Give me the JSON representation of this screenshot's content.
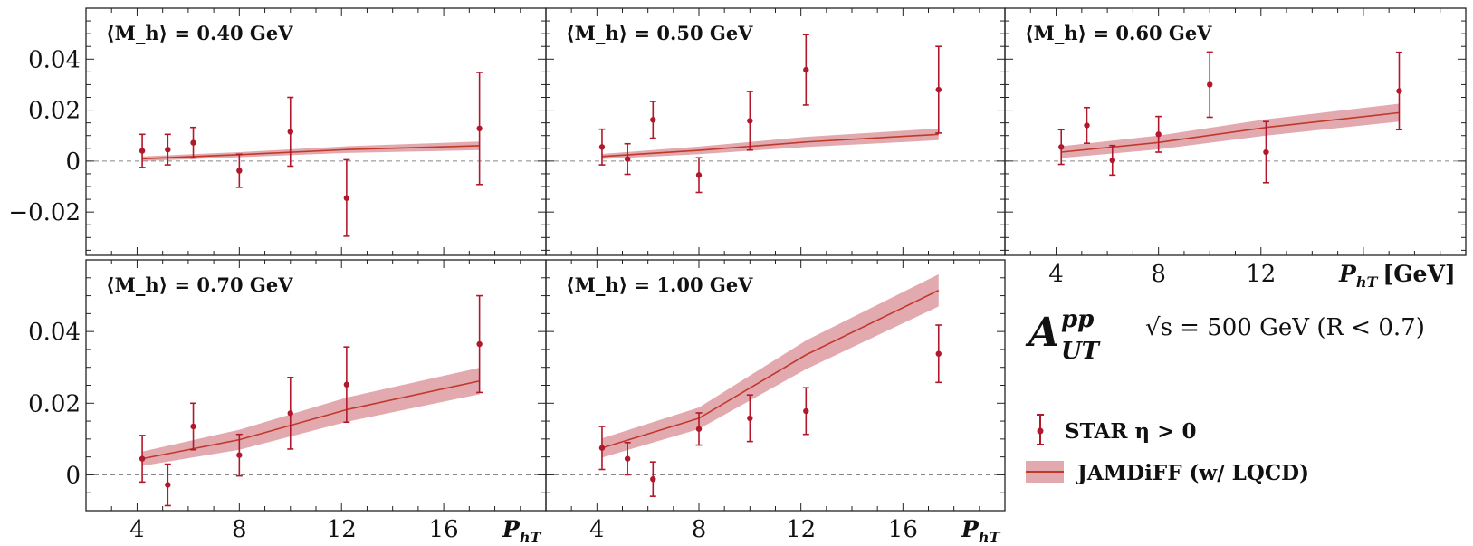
{
  "colors": {
    "data": "#b2182b",
    "band_fill": "#d6858d",
    "band_line": "#c0392b",
    "zero_line": "#888888",
    "frame": "#222222"
  },
  "axis_labels": {
    "x_symbol": "P",
    "x_subscript": "hT",
    "x_unit": "[GeV]"
  },
  "observable": {
    "symbol": "A",
    "superscript": "pp",
    "subscript": "UT",
    "energy": "√s = 500 GeV (R < 0.7)"
  },
  "legend": {
    "data_label": "STAR η > 0",
    "model_label": "JAMDiFF (w/ LQCD)"
  },
  "chart_data": [
    {
      "type": "scatter",
      "title": "⟨M_h⟩ = 0.40 GeV",
      "xlabel": "P_hT",
      "ylabel": "A_UT^pp",
      "xlim": [
        2,
        20
      ],
      "ylim": [
        -0.037,
        0.06
      ],
      "x_ticks": [
        4,
        8,
        12,
        16
      ],
      "y_ticks": [
        -0.02,
        0,
        0.02,
        0.04
      ],
      "y_tick_labels": [
        "−0.02",
        "0",
        "0.02",
        "0.04"
      ],
      "series": [
        {
          "name": "STAR η > 0",
          "points": [
            {
              "x": 4.2,
              "y": 0.004,
              "err": 0.0065
            },
            {
              "x": 5.2,
              "y": 0.0045,
              "err": 0.006
            },
            {
              "x": 6.2,
              "y": 0.0072,
              "err": 0.006
            },
            {
              "x": 8.0,
              "y": -0.0038,
              "err": 0.0065
            },
            {
              "x": 10.0,
              "y": 0.0115,
              "err": 0.0135
            },
            {
              "x": 12.2,
              "y": -0.0145,
              "err": 0.015
            },
            {
              "x": 17.4,
              "y": 0.0128,
              "err": 0.022
            }
          ]
        },
        {
          "name": "JAMDiFF (w/ LQCD)",
          "band": [
            {
              "x": 4.2,
              "y": 0.0009,
              "lo": 0.0,
              "hi": 0.0018
            },
            {
              "x": 8.0,
              "y": 0.0025,
              "lo": 0.0015,
              "hi": 0.0035
            },
            {
              "x": 12.2,
              "y": 0.0045,
              "lo": 0.0032,
              "hi": 0.0058
            },
            {
              "x": 17.4,
              "y": 0.006,
              "lo": 0.0043,
              "hi": 0.0077
            }
          ]
        }
      ]
    },
    {
      "type": "scatter",
      "title": "⟨M_h⟩ = 0.50 GeV",
      "xlabel": "P_hT",
      "ylabel": "A_UT^pp",
      "xlim": [
        2,
        20
      ],
      "ylim": [
        -0.037,
        0.06
      ],
      "x_ticks": [
        4,
        8,
        12,
        16
      ],
      "y_ticks": [
        -0.02,
        0,
        0.02,
        0.04
      ],
      "series": [
        {
          "name": "STAR η > 0",
          "points": [
            {
              "x": 4.2,
              "y": 0.0055,
              "err": 0.007
            },
            {
              "x": 5.2,
              "y": 0.0008,
              "err": 0.006
            },
            {
              "x": 6.2,
              "y": 0.0162,
              "err": 0.0072
            },
            {
              "x": 8.0,
              "y": -0.0055,
              "err": 0.0068
            },
            {
              "x": 10.0,
              "y": 0.0158,
              "err": 0.0115
            },
            {
              "x": 12.2,
              "y": 0.0358,
              "err": 0.0138
            },
            {
              "x": 17.4,
              "y": 0.028,
              "err": 0.017
            }
          ]
        },
        {
          "name": "JAMDiFF (w/ LQCD)",
          "band": [
            {
              "x": 4.2,
              "y": 0.0018,
              "lo": 0.0008,
              "hi": 0.0028
            },
            {
              "x": 8.0,
              "y": 0.0042,
              "lo": 0.0027,
              "hi": 0.0057
            },
            {
              "x": 12.2,
              "y": 0.0075,
              "lo": 0.0055,
              "hi": 0.0095
            },
            {
              "x": 17.4,
              "y": 0.0105,
              "lo": 0.0082,
              "hi": 0.0128
            }
          ]
        }
      ]
    },
    {
      "type": "scatter",
      "title": "⟨M_h⟩ = 0.60 GeV",
      "xlabel": "P_hT",
      "ylabel": "A_UT^pp",
      "xlim": [
        2,
        20
      ],
      "ylim": [
        -0.037,
        0.06
      ],
      "x_ticks": [
        4,
        8,
        12,
        16
      ],
      "x_tick_labels": [
        "4",
        "8",
        "12",
        ""
      ],
      "y_ticks": [
        -0.02,
        0,
        0.02,
        0.04
      ],
      "series": [
        {
          "name": "STAR η > 0",
          "points": [
            {
              "x": 4.2,
              "y": 0.0055,
              "err": 0.0068
            },
            {
              "x": 5.2,
              "y": 0.014,
              "err": 0.007
            },
            {
              "x": 6.2,
              "y": 0.0003,
              "err": 0.0058
            },
            {
              "x": 8.0,
              "y": 0.0105,
              "err": 0.007
            },
            {
              "x": 10.0,
              "y": 0.03,
              "err": 0.0128
            },
            {
              "x": 12.2,
              "y": 0.0035,
              "err": 0.012
            },
            {
              "x": 17.4,
              "y": 0.0275,
              "err": 0.0152
            }
          ]
        },
        {
          "name": "JAMDiFF (w/ LQCD)",
          "band": [
            {
              "x": 4.2,
              "y": 0.0035,
              "lo": 0.0012,
              "hi": 0.0058
            },
            {
              "x": 8.0,
              "y": 0.0073,
              "lo": 0.0046,
              "hi": 0.01
            },
            {
              "x": 12.2,
              "y": 0.0132,
              "lo": 0.01,
              "hi": 0.0164
            },
            {
              "x": 17.4,
              "y": 0.019,
              "lo": 0.0155,
              "hi": 0.0225
            }
          ]
        }
      ]
    },
    {
      "type": "scatter",
      "title": "⟨M_h⟩ = 0.70 GeV",
      "xlabel": "P_hT",
      "ylabel": "A_UT^pp",
      "xlim": [
        2,
        20
      ],
      "ylim": [
        -0.01,
        0.06
      ],
      "x_ticks": [
        4,
        8,
        12,
        16
      ],
      "y_ticks": [
        0,
        0.02,
        0.04
      ],
      "series": [
        {
          "name": "STAR η > 0",
          "points": [
            {
              "x": 4.2,
              "y": 0.0045,
              "err": 0.0065
            },
            {
              "x": 5.2,
              "y": -0.0028,
              "err": 0.0058
            },
            {
              "x": 6.2,
              "y": 0.0135,
              "err": 0.0065
            },
            {
              "x": 8.0,
              "y": 0.0055,
              "err": 0.0058
            },
            {
              "x": 10.0,
              "y": 0.0172,
              "err": 0.01
            },
            {
              "x": 12.2,
              "y": 0.0252,
              "err": 0.0105
            },
            {
              "x": 17.4,
              "y": 0.0365,
              "err": 0.0135
            }
          ]
        },
        {
          "name": "JAMDiFF (w/ LQCD)",
          "band": [
            {
              "x": 4.2,
              "y": 0.0045,
              "lo": 0.0025,
              "hi": 0.0065
            },
            {
              "x": 8.0,
              "y": 0.0098,
              "lo": 0.007,
              "hi": 0.0126
            },
            {
              "x": 12.2,
              "y": 0.0182,
              "lo": 0.0148,
              "hi": 0.0216
            },
            {
              "x": 17.4,
              "y": 0.0262,
              "lo": 0.0225,
              "hi": 0.0299
            }
          ]
        }
      ]
    },
    {
      "type": "scatter",
      "title": "⟨M_h⟩ = 1.00 GeV",
      "xlabel": "P_hT",
      "ylabel": "A_UT^pp",
      "xlim": [
        2,
        20
      ],
      "ylim": [
        -0.01,
        0.06
      ],
      "x_ticks": [
        4,
        8,
        12,
        16
      ],
      "y_ticks": [
        0,
        0.02,
        0.04
      ],
      "series": [
        {
          "name": "STAR η > 0",
          "points": [
            {
              "x": 4.2,
              "y": 0.0075,
              "err": 0.006
            },
            {
              "x": 5.2,
              "y": 0.0045,
              "err": 0.0045
            },
            {
              "x": 6.2,
              "y": -0.0012,
              "err": 0.0048
            },
            {
              "x": 8.0,
              "y": 0.0128,
              "err": 0.0045
            },
            {
              "x": 10.0,
              "y": 0.0158,
              "err": 0.0065
            },
            {
              "x": 12.2,
              "y": 0.0178,
              "err": 0.0065
            },
            {
              "x": 17.4,
              "y": 0.0338,
              "err": 0.008
            }
          ]
        },
        {
          "name": "JAMDiFF (w/ LQCD)",
          "band": [
            {
              "x": 4.2,
              "y": 0.0075,
              "lo": 0.0048,
              "hi": 0.0102
            },
            {
              "x": 8.0,
              "y": 0.0158,
              "lo": 0.0128,
              "hi": 0.0188
            },
            {
              "x": 12.2,
              "y": 0.0335,
              "lo": 0.0295,
              "hi": 0.0375
            },
            {
              "x": 17.4,
              "y": 0.0515,
              "lo": 0.047,
              "hi": 0.056
            }
          ]
        }
      ]
    }
  ]
}
